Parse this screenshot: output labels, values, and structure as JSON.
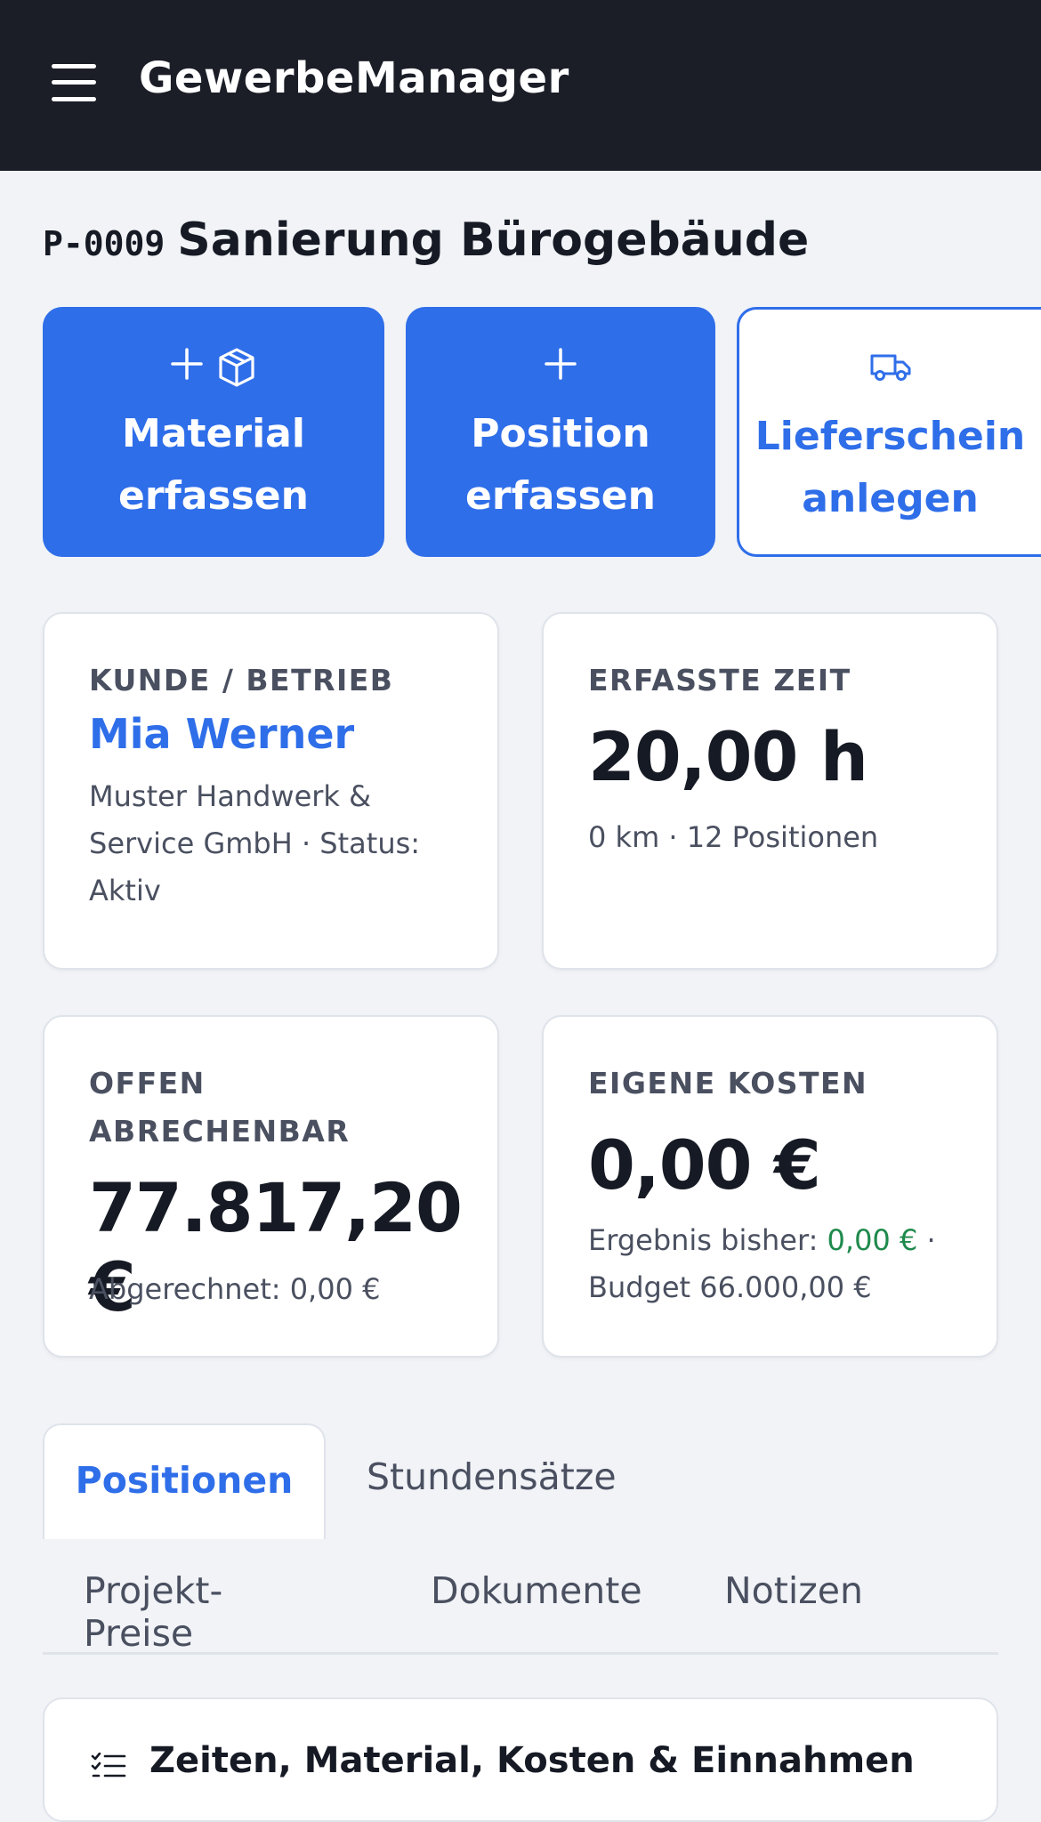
{
  "app": {
    "title": "GewerbeManager"
  },
  "project": {
    "code": "P-0009",
    "name": "Sanierung Bürogebäude"
  },
  "actions": [
    {
      "line1": "Material",
      "line2": "erfassen",
      "icons": [
        "plus-icon",
        "box-icon"
      ],
      "style": "primary"
    },
    {
      "line1": "Position",
      "line2": "erfassen",
      "icons": [
        "plus-icon"
      ],
      "style": "primary"
    },
    {
      "line1": "Lieferschein",
      "line2": "anlegen",
      "icons": [
        "truck-icon"
      ],
      "style": "outline"
    }
  ],
  "cards": {
    "customer": {
      "label": "KUNDE / BETRIEB",
      "name": "Mia Werner",
      "detail1": "Muster Handwerk &",
      "detail2": "Service GmbH · Status:",
      "detail3": "Aktiv"
    },
    "time": {
      "label": "ERFASSTE ZEIT",
      "value": "20,00 h",
      "sub": "0 km · 12 Positionen"
    },
    "open": {
      "label1": "OFFEN",
      "label2": "ABRECHENBAR",
      "value": "77.817,20 €",
      "sub": "Abgerechnet: 0,00 €"
    },
    "costs": {
      "label": "EIGENE KOSTEN",
      "value": "0,00 €",
      "sub_prefix": "Ergebnis bisher: ",
      "sub_value": "0,00 €",
      "sub_suffix": " ·",
      "sub2": "Budget 66.000,00 €"
    }
  },
  "tabs": {
    "positionen": "Positionen",
    "stundensaetze": "Stundensätze",
    "projekt_preise": "Projekt-Preise",
    "dokumente": "Dokumente",
    "notizen": "Notizen"
  },
  "section": {
    "title": "Zeiten, Material, Kosten & Einnahmen"
  },
  "colors": {
    "topbar": "#1b1e27",
    "accent": "#2f6ee9",
    "positive": "#1f8a4c",
    "background": "#f1f3f7"
  }
}
